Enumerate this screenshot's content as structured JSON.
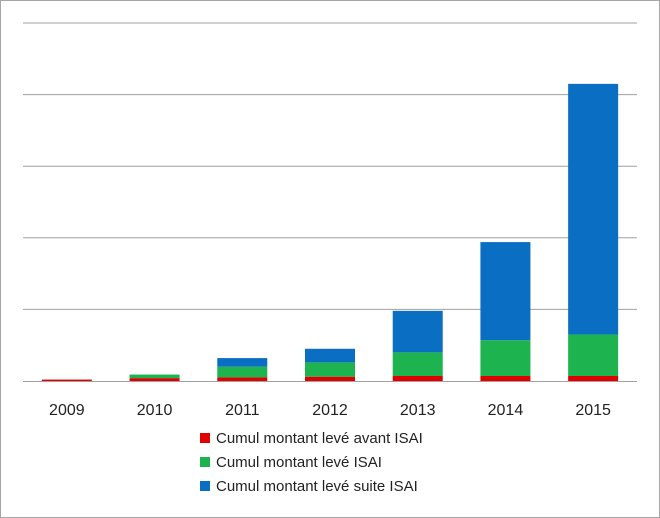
{
  "chart_data": {
    "type": "bar",
    "stacked": true,
    "title": "",
    "xlabel": "",
    "ylabel": "",
    "categories": [
      "2009",
      "2010",
      "2011",
      "2012",
      "2013",
      "2014",
      "2015"
    ],
    "ylim": [
      0,
      5
    ],
    "gridlines": [
      0,
      1,
      2,
      3,
      4,
      5
    ],
    "grid": true,
    "y_tick_labels_visible": false,
    "legend_position": "bottom",
    "series": [
      {
        "name": "Cumul montant levé avant ISAI",
        "color": "#e00000",
        "values": [
          0.02,
          0.04,
          0.05,
          0.06,
          0.07,
          0.07,
          0.07
        ]
      },
      {
        "name": "Cumul montant levé ISAI",
        "color": "#1db34f",
        "values": [
          0.0,
          0.05,
          0.15,
          0.2,
          0.33,
          0.5,
          0.58
        ]
      },
      {
        "name": "Cumul montant levé suite ISAI",
        "color": "#0a6fc2",
        "values": [
          0.0,
          0.0,
          0.12,
          0.19,
          0.58,
          1.37,
          3.5
        ]
      }
    ]
  }
}
